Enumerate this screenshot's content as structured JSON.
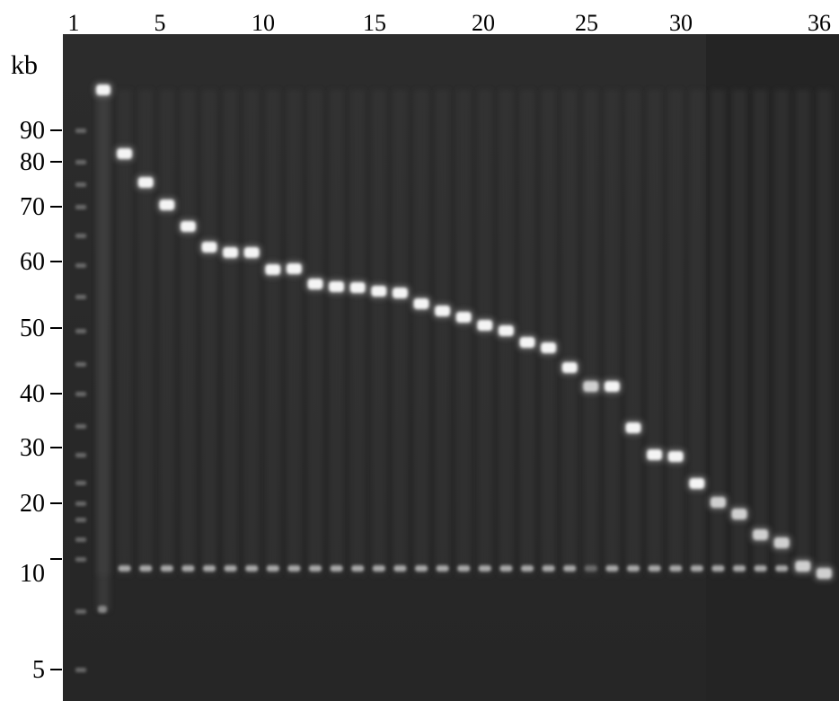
{
  "axis": {
    "unit": "kb",
    "ticks": [
      90,
      80,
      70,
      60,
      50,
      40,
      30,
      20,
      10,
      5
    ]
  },
  "lanes": {
    "labels": [
      1,
      5,
      10,
      15,
      20,
      25,
      30,
      36
    ]
  }
}
